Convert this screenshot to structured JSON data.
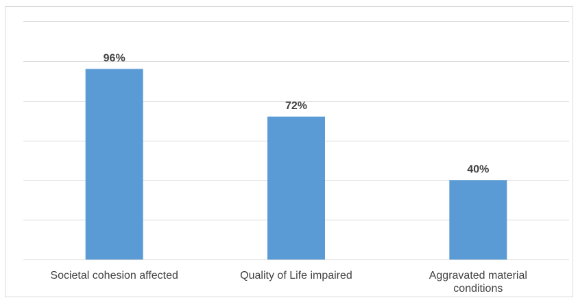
{
  "chart_data": {
    "type": "bar",
    "categories": [
      [
        "Societal cohesion affected"
      ],
      [
        "Quality of Life impaired"
      ],
      [
        "Aggravated material",
        "conditions"
      ]
    ],
    "values": [
      96,
      72,
      40
    ],
    "data_labels": [
      "96%",
      "72%",
      "40%"
    ],
    "title": "",
    "xlabel": "",
    "ylabel": "",
    "ylim": [
      0,
      120
    ],
    "y_axis_labels_shown": false,
    "grid": true,
    "bar_color": "#5b9bd5",
    "gridline_color": "#d9d9d9",
    "label_color": "#404040"
  }
}
